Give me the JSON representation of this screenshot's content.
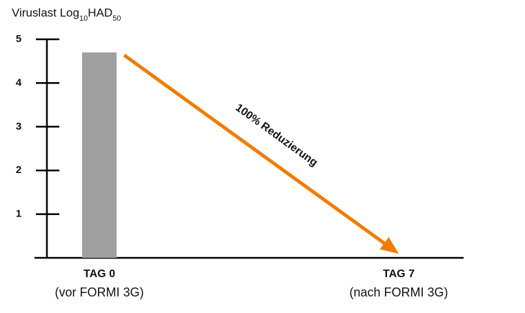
{
  "chart_data": {
    "type": "bar",
    "ylabel_parts": [
      "Viruslast Log",
      "10",
      "HAD",
      "50"
    ],
    "categories": [
      "TAG 0",
      "TAG 7"
    ],
    "category_sublabels": [
      "(vor FORMI 3G)",
      "(nach FORMI 3G)"
    ],
    "values": [
      4.7,
      0
    ],
    "color": "#a0a0a0",
    "ylim": [
      0,
      5
    ],
    "yticks": [
      1,
      2,
      3,
      4,
      5
    ],
    "annotation": "100% Reduzierung",
    "annotation_color": "#f07c00"
  }
}
